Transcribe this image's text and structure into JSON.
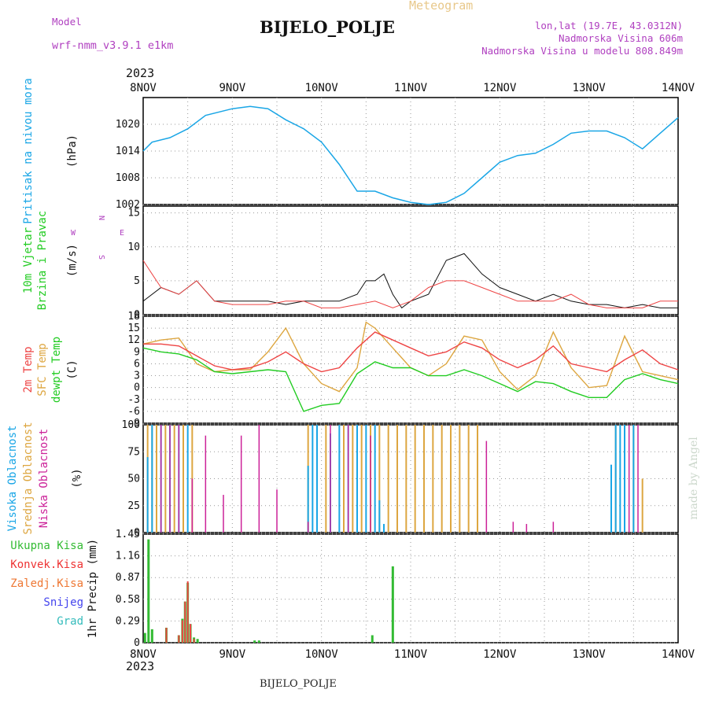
{
  "header": {
    "model_label": "Model",
    "model_name": "wrf-nmm_v3.9.1 e1km",
    "meteogram_label": "Meteogram",
    "station": "BIJELO_POLJE",
    "lonlat": "lon,lat (19.7E, 43.0312N)",
    "elevation": "Nadmorska Visina 606m",
    "model_elevation": "Nadmorska Visina u modelu 808.849m",
    "year": "2023"
  },
  "footer": {
    "station": "BIJELO_POLJE",
    "year": "2023",
    "watermark": "made by Angel"
  },
  "colors": {
    "pressure": "#1aa6e6",
    "temp2m": "#ee4444",
    "sfc": "#dda640",
    "dew": "#22cc22",
    "high_cloud": "#1aa6e6",
    "mid_cloud": "#dda640",
    "low_cloud": "#cc2299",
    "precip_total": "#33bb33",
    "precip_conv": "#ee4444",
    "legend_total": "#33bb33",
    "legend_conv": "#ee3333",
    "legend_frz": "#ee7733",
    "legend_snow": "#4444ee",
    "legend_grad": "#33bbbb",
    "wind_label": "#b040c0"
  },
  "x_axis": {
    "ticks": [
      "8NOV",
      "9NOV",
      "10NOV",
      "11NOV",
      "12NOV",
      "13NOV",
      "14NOV"
    ],
    "range_days": [
      8,
      14
    ]
  },
  "chart_data": [
    {
      "type": "line",
      "labels": [
        "Pritisak na nivou mora",
        "(hPa)"
      ],
      "yticks": [
        "1002",
        "1008",
        "1014",
        "1020"
      ],
      "ylim": [
        1002,
        1026
      ],
      "series": [
        {
          "x": [
            8.0,
            8.1,
            8.3,
            8.5,
            8.7,
            9.0,
            9.2,
            9.4,
            9.6,
            9.8,
            10.0,
            10.2,
            10.4,
            10.6,
            10.8,
            11.0,
            11.2,
            11.4,
            11.6,
            11.8,
            12.0,
            12.2,
            12.4,
            12.6,
            12.8,
            13.0,
            13.2,
            13.4,
            13.6,
            13.8,
            14.0
          ],
          "y": [
            1014,
            1016,
            1017,
            1019,
            1022,
            1023.5,
            1024,
            1023.5,
            1021,
            1019,
            1016,
            1011,
            1005,
            1005,
            1003.5,
            1002.5,
            1002,
            1002.5,
            1004.5,
            1008,
            1011.5,
            1013,
            1013.5,
            1015.5,
            1018,
            1018.5,
            1018.5,
            1017,
            1014.5,
            1018,
            1021.5
          ]
        }
      ]
    },
    {
      "type": "line",
      "labels": [
        "10m Vjetar",
        "Brzina i Pravac",
        "(m/s)"
      ],
      "yticks": [
        "0",
        "5",
        "10",
        "15"
      ],
      "ylim": [
        0,
        16
      ],
      "wind_legend": {
        "n": "N",
        "s": "S",
        "e": "E",
        "w": "W"
      },
      "series": [
        {
          "x": [
            8.0,
            8.2,
            8.4,
            8.6,
            8.8,
            9.0,
            9.2,
            9.4,
            9.6,
            9.8,
            10.0,
            10.2,
            10.4,
            10.5,
            10.6,
            10.7,
            10.8,
            10.9,
            11.0,
            11.2,
            11.4,
            11.6,
            11.8,
            12.0,
            12.2,
            12.4,
            12.6,
            12.8,
            13.0,
            13.2,
            13.4,
            13.6,
            13.8,
            14.0
          ],
          "y": [
            2,
            4,
            3,
            5,
            2,
            2,
            2,
            2,
            1.5,
            2,
            2,
            2,
            3,
            5,
            5,
            6,
            3,
            1,
            2,
            3,
            8,
            9,
            6,
            4,
            3,
            2,
            3,
            2,
            1.5,
            1.5,
            1,
            1.5,
            1,
            1
          ]
        },
        {
          "x": [
            8.0,
            8.1,
            8.2,
            8.4,
            8.6,
            8.8,
            9.0,
            9.2,
            9.4,
            9.6,
            9.8,
            10.0,
            10.2,
            10.4,
            10.6,
            10.8,
            11.0,
            11.2,
            11.4,
            11.6,
            11.8,
            12.0,
            12.2,
            12.4,
            12.6,
            12.8,
            13.0,
            13.2,
            13.4,
            13.6,
            13.8,
            14.0
          ],
          "y": [
            8,
            6,
            4,
            3,
            5,
            2,
            1.5,
            1.5,
            1.5,
            2,
            2,
            1,
            1,
            1.5,
            2,
            1,
            2,
            4,
            5,
            5,
            4,
            3,
            2,
            2,
            2,
            3,
            1.5,
            1,
            1,
            1,
            2,
            2
          ]
        }
      ]
    },
    {
      "type": "line",
      "labels": [
        "2m Temp",
        "SFC Temp",
        "dewpt Temp",
        "(C)"
      ],
      "yticks": [
        "-9",
        "-6",
        "-3",
        "0",
        "3",
        "6",
        "9",
        "12",
        "15",
        "18"
      ],
      "ylim": [
        -9,
        18
      ],
      "series": [
        {
          "name": "2m Temp",
          "x": [
            8.0,
            8.2,
            8.4,
            8.6,
            8.8,
            9.0,
            9.2,
            9.4,
            9.6,
            9.8,
            10.0,
            10.2,
            10.4,
            10.6,
            10.8,
            11.0,
            11.2,
            11.4,
            11.6,
            11.8,
            12.0,
            12.2,
            12.4,
            12.6,
            12.8,
            13.0,
            13.2,
            13.4,
            13.6,
            13.8,
            14.0
          ],
          "y": [
            11,
            11,
            10.5,
            8,
            5.5,
            4.5,
            5,
            6.5,
            9,
            6,
            4,
            5,
            10,
            14,
            12,
            10,
            8,
            9,
            11.5,
            10,
            7,
            5,
            7,
            10.5,
            6,
            5,
            4,
            7,
            9.5,
            6,
            4.5
          ]
        },
        {
          "name": "SFC Temp",
          "x": [
            8.0,
            8.2,
            8.4,
            8.6,
            8.8,
            9.0,
            9.2,
            9.4,
            9.6,
            9.8,
            10.0,
            10.2,
            10.4,
            10.5,
            10.6,
            10.8,
            11.0,
            11.2,
            11.4,
            11.6,
            11.8,
            12.0,
            12.2,
            12.4,
            12.6,
            12.8,
            13.0,
            13.2,
            13.4,
            13.6,
            13.8,
            14.0
          ],
          "y": [
            11,
            12,
            12.5,
            6,
            4,
            4.5,
            4.5,
            9,
            15,
            6,
            1,
            -1,
            5,
            16.5,
            15,
            10,
            5,
            3,
            6,
            13,
            12,
            4,
            -0.5,
            3,
            14,
            5,
            0,
            0.5,
            13,
            4,
            3,
            2
          ]
        },
        {
          "name": "dewpt Temp",
          "x": [
            8.0,
            8.2,
            8.4,
            8.6,
            8.8,
            9.0,
            9.2,
            9.4,
            9.6,
            9.8,
            10.0,
            10.2,
            10.4,
            10.6,
            10.8,
            11.0,
            11.2,
            11.4,
            11.6,
            11.8,
            12.0,
            12.2,
            12.4,
            12.6,
            12.8,
            13.0,
            13.2,
            13.4,
            13.6,
            13.8,
            14.0
          ],
          "y": [
            10,
            9,
            8.5,
            7,
            4,
            3.5,
            4,
            4.5,
            4,
            -6,
            -4.5,
            -4,
            3.5,
            6.5,
            5,
            5,
            3,
            3,
            4.5,
            3,
            1,
            -1,
            1.5,
            1,
            -1,
            -2.5,
            -2.5,
            2,
            3.5,
            2,
            1
          ]
        }
      ]
    },
    {
      "type": "bar",
      "labels": [
        "Visoka Oblacnost",
        "Srednja Oblacnost",
        "Niska Oblacnost",
        "(%)"
      ],
      "yticks": [
        "0",
        "25",
        "50",
        "75",
        "100"
      ],
      "ylim": [
        0,
        100
      ],
      "series": [
        {
          "name": "Visoka Oblacnost",
          "x": [
            8.05,
            8.1,
            8.2,
            8.3,
            8.4,
            8.5,
            9.85,
            9.9,
            9.95,
            10.1,
            10.2,
            10.3,
            10.4,
            10.5,
            10.6,
            10.65,
            10.7,
            13.25,
            13.3,
            13.35,
            13.4,
            13.5
          ],
          "y": [
            70,
            100,
            100,
            100,
            100,
            100,
            62,
            100,
            100,
            92,
            100,
            100,
            100,
            100,
            100,
            30,
            8,
            63,
            100,
            100,
            100,
            100
          ]
        },
        {
          "name": "Srednja Oblacnost",
          "x": [
            8.05,
            8.1,
            8.15,
            8.25,
            8.35,
            8.45,
            8.55,
            9.85,
            9.95,
            10.05,
            10.25,
            10.35,
            10.45,
            10.55,
            10.65,
            10.75,
            10.85,
            10.95,
            11.05,
            11.15,
            11.25,
            11.35,
            11.45,
            11.55,
            11.65,
            11.75,
            13.3,
            13.4,
            13.5,
            13.6
          ],
          "y": [
            100,
            100,
            100,
            100,
            100,
            100,
            100,
            100,
            100,
            100,
            100,
            100,
            100,
            100,
            100,
            100,
            100,
            100,
            100,
            100,
            100,
            100,
            100,
            100,
            100,
            100,
            100,
            100,
            100,
            50
          ]
        },
        {
          "name": "Niska Oblacnost",
          "x": [
            8.2,
            8.3,
            8.4,
            8.55,
            8.7,
            8.9,
            9.1,
            9.3,
            9.5,
            9.85,
            10.1,
            10.3,
            10.55,
            11.85,
            12.15,
            12.3,
            12.6,
            13.45,
            13.55
          ],
          "y": [
            100,
            100,
            100,
            50,
            90,
            35,
            90,
            100,
            40,
            10,
            100,
            100,
            90,
            85,
            10,
            8,
            10,
            100,
            100
          ]
        }
      ]
    },
    {
      "type": "bar",
      "labels": [
        "1hr Precip (mm)"
      ],
      "yticks": [
        "0",
        "0.29",
        "0.58",
        "0.87",
        "1.16",
        "1.45"
      ],
      "ylim": [
        0,
        1.45
      ],
      "legend": [
        "Ukupna Kisa",
        "Konvek.Kisa",
        "Zaledj.Kisa",
        "Snijeg",
        "Grad"
      ],
      "series": [
        {
          "name": "Ukupna Kisa",
          "x": [
            8.02,
            8.06,
            8.1,
            8.26,
            8.4,
            8.44,
            8.47,
            8.5,
            8.53,
            8.57,
            8.61,
            9.25,
            9.3,
            10.57,
            10.8
          ],
          "y": [
            0.13,
            1.38,
            0.18,
            0.2,
            0.1,
            0.32,
            0.55,
            0.8,
            0.25,
            0.07,
            0.05,
            0.03,
            0.03,
            0.1,
            1.02
          ]
        },
        {
          "name": "Konvek.Kisa",
          "x": [
            8.26,
            8.4,
            8.44,
            8.47,
            8.5,
            8.53,
            8.57
          ],
          "y": [
            0.2,
            0.1,
            0.3,
            0.55,
            0.82,
            0.25,
            0.05
          ]
        }
      ]
    }
  ]
}
